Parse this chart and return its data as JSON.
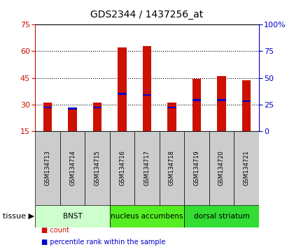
{
  "title": "GDS2344 / 1437256_at",
  "samples": [
    "GSM134713",
    "GSM134714",
    "GSM134715",
    "GSM134716",
    "GSM134717",
    "GSM134718",
    "GSM134719",
    "GSM134720",
    "GSM134721"
  ],
  "counts": [
    31.0,
    28.0,
    31.0,
    62.0,
    63.0,
    31.0,
    44.5,
    46.0,
    43.5
  ],
  "percentiles": [
    22.0,
    21.0,
    22.0,
    35.0,
    34.0,
    22.0,
    29.0,
    29.0,
    28.0
  ],
  "ylim_left": [
    15,
    75
  ],
  "ylim_right": [
    0,
    100
  ],
  "yticks_left": [
    15,
    30,
    45,
    60,
    75
  ],
  "yticks_right": [
    0,
    25,
    50,
    75,
    100
  ],
  "bar_color": "#cc1100",
  "percentile_color": "#0000cc",
  "grid_color": "#000000",
  "tissue_groups": [
    {
      "label": "BNST",
      "start": 0,
      "end": 3,
      "color": "#ccffcc"
    },
    {
      "label": "nucleus accumbens",
      "start": 3,
      "end": 6,
      "color": "#55ee22"
    },
    {
      "label": "dorsal striatum",
      "start": 6,
      "end": 9,
      "color": "#33dd33"
    }
  ],
  "tissue_label": "tissue",
  "legend_count": "count",
  "legend_pct": "percentile rank within the sample",
  "left_axis_color": "#cc1100",
  "right_axis_color": "#0000cc",
  "bar_width": 0.35,
  "figsize": [
    4.2,
    3.54
  ],
  "dpi": 100
}
